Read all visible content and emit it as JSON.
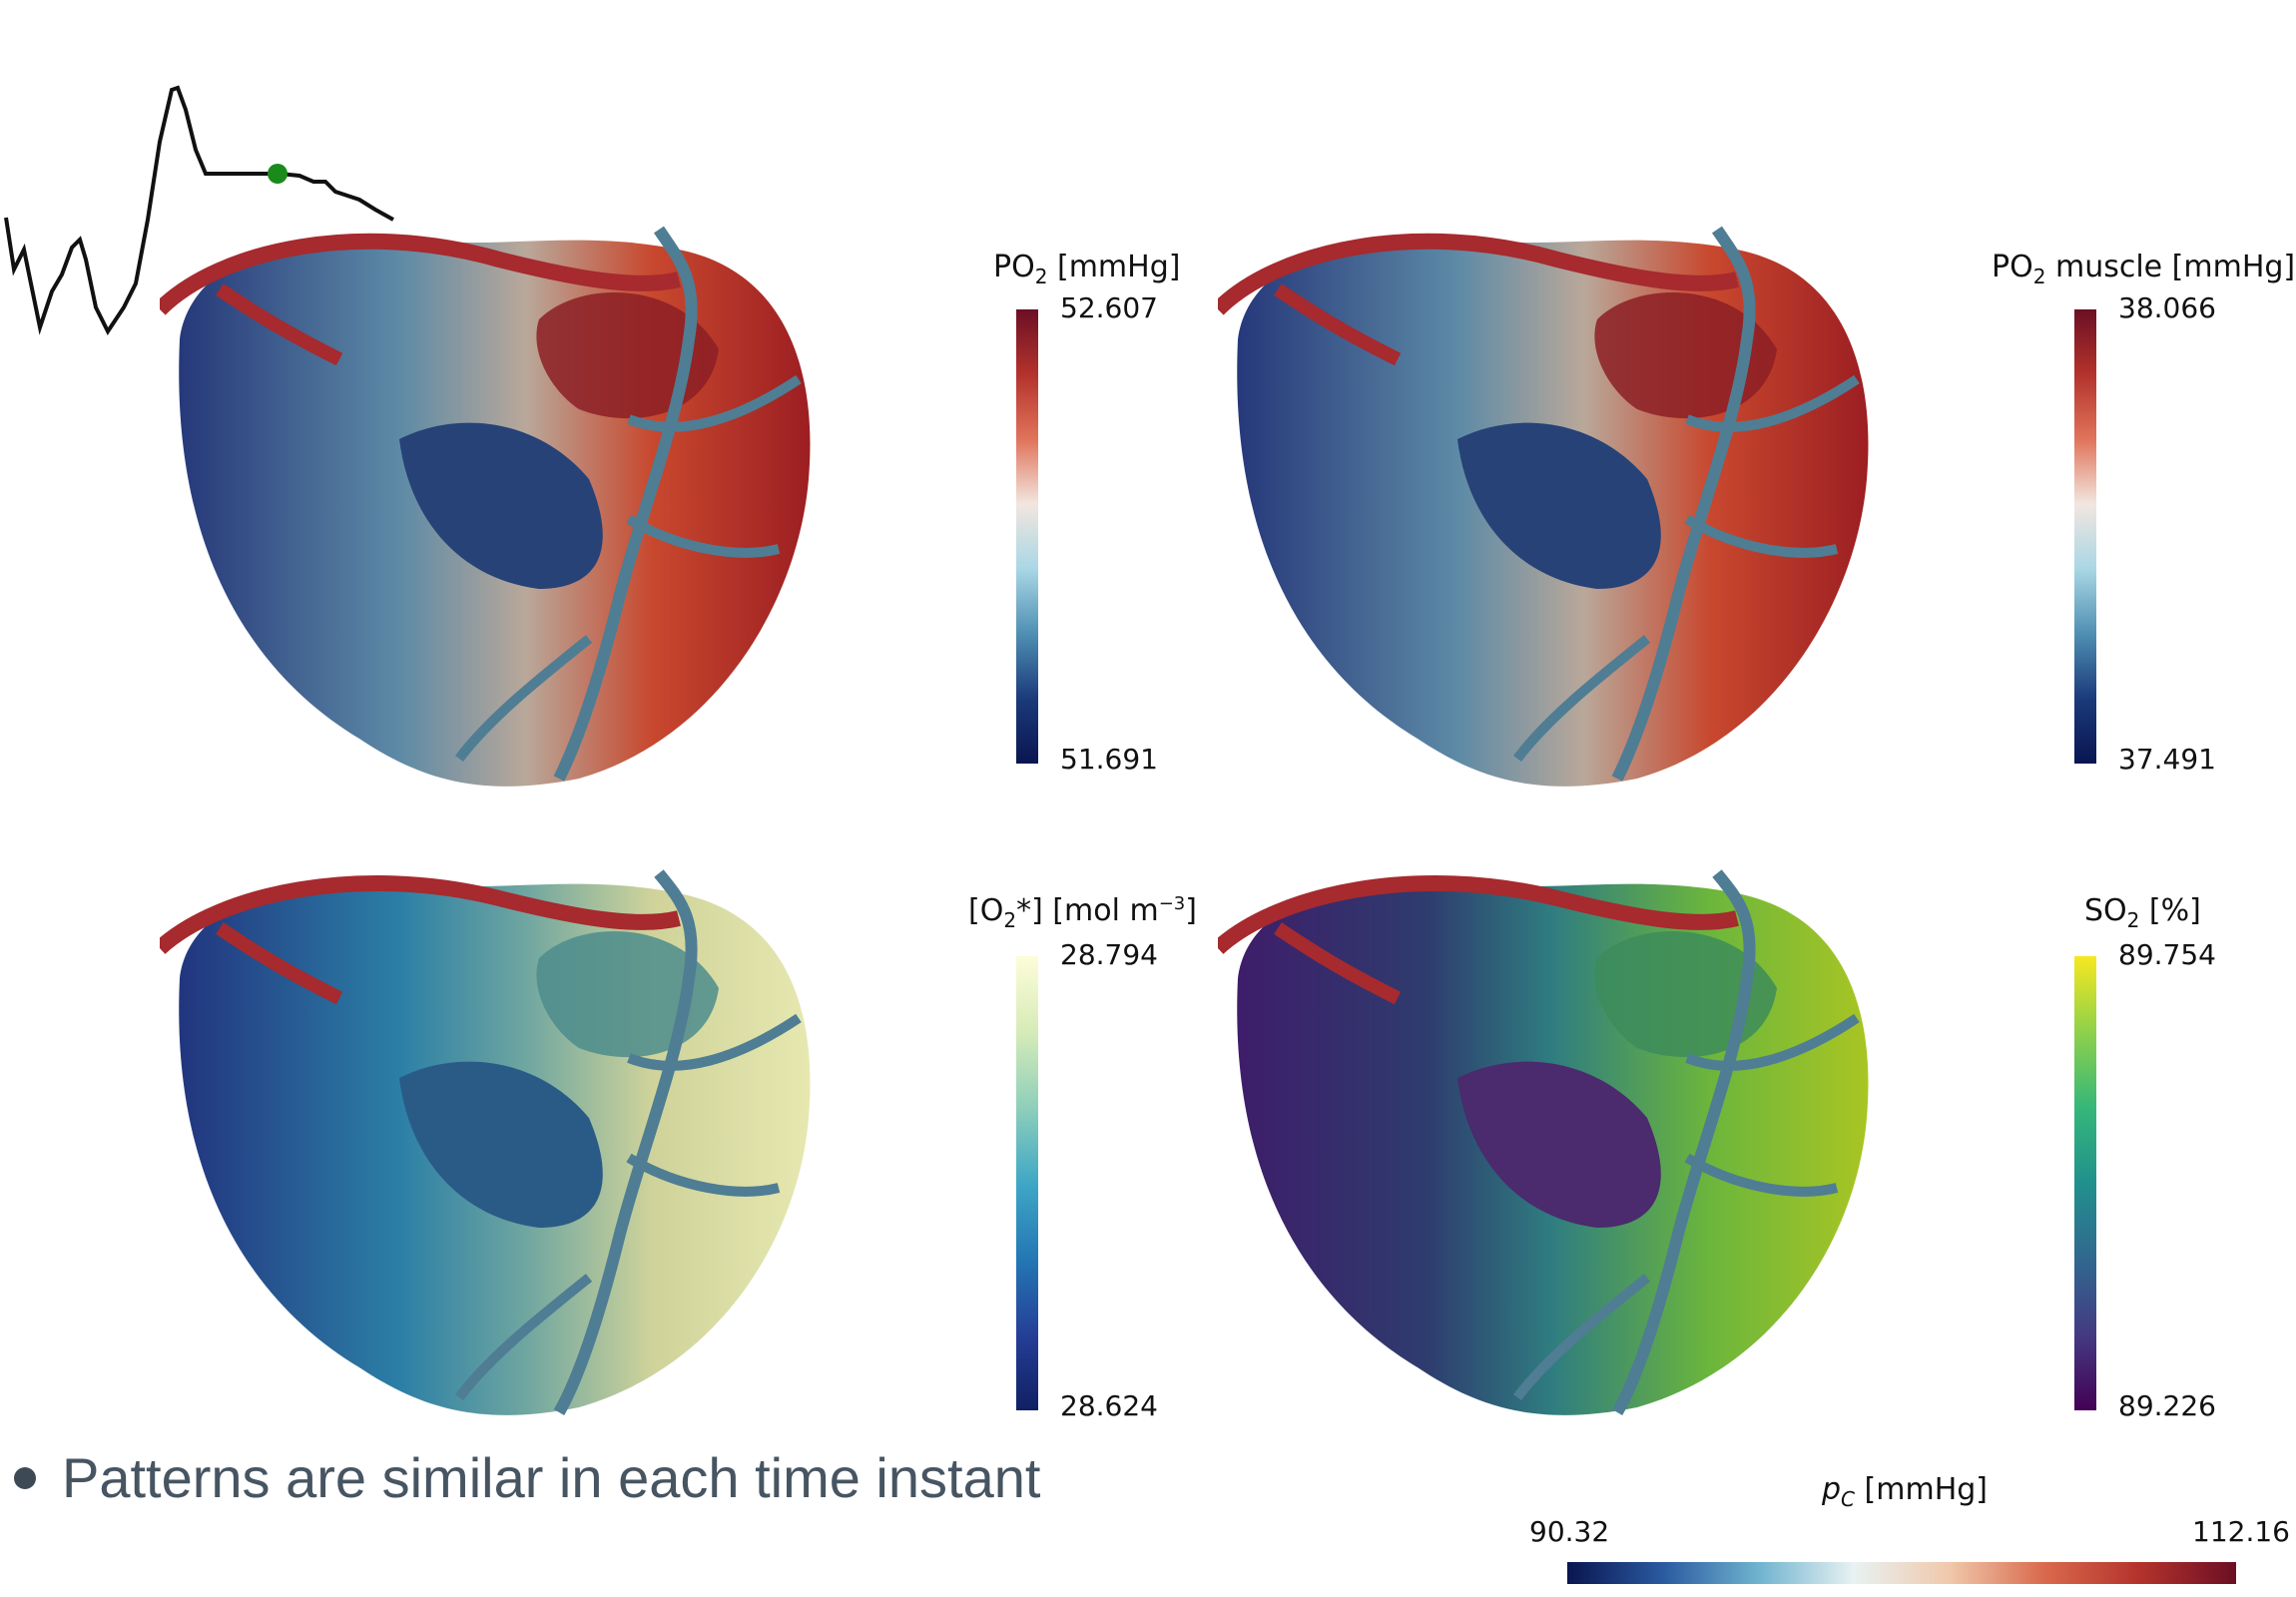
{
  "panels": [
    {
      "title_main": "PO",
      "title_sub": "2",
      "title_rest": " [mmHg]",
      "max": "52.607",
      "min": "51.691",
      "colormap": "coolwarm",
      "left_color": "#1c2f6f",
      "right_color": "#a6232a"
    },
    {
      "title_main": "PO",
      "title_sub": "2",
      "title_rest": " muscle [mmHg]",
      "max": "38.066",
      "min": "37.491",
      "colormap": "coolwarm",
      "left_color": "#1c2f6f",
      "right_color": "#a6232a"
    },
    {
      "title_main": "[O",
      "title_sub": "2",
      "title_rest": "*] [mol m",
      "title_sup": "−3",
      "title_end": "]",
      "max": "28.794",
      "min": "28.624",
      "colormap": "ygb",
      "left_color": "#1f3b8a",
      "right_color": "#e2e6a6"
    },
    {
      "title_main": "SO",
      "title_sub": "2",
      "title_rest": " [%]",
      "max": "89.754",
      "min": "89.226",
      "colormap": "viridis",
      "left_color": "#3f1f6e",
      "right_color": "#9fc42a"
    }
  ],
  "pressure": {
    "label_main": "p",
    "label_sub": "C",
    "label_rest": " [mmHg]",
    "min": "90.32",
    "max": "112.16",
    "current_marker_color": "#1a8a1a"
  },
  "vessel_color": "#4f7d94",
  "bullet": "Patterns are similar in each time instant"
}
